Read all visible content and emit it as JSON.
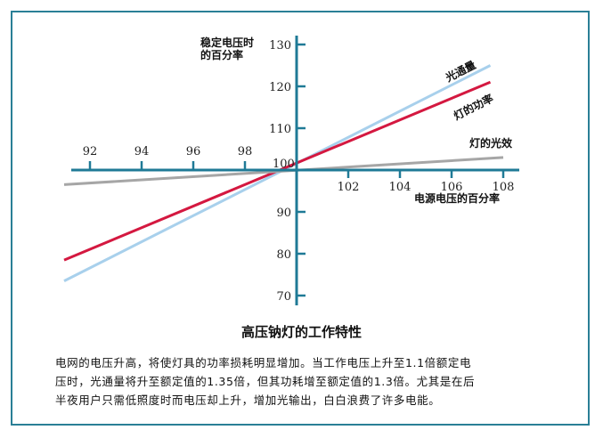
{
  "chart_data": {
    "type": "line",
    "title": "高压钠灯的工作特性",
    "xlabel": "电源电压的百分率",
    "ylabel_lines": [
      "稳定电压时",
      "的百分率"
    ],
    "x_ticks_left": [
      92,
      94,
      96,
      98
    ],
    "x_ticks_right": [
      102,
      104,
      106,
      108
    ],
    "y_ticks": [
      70,
      80,
      90,
      100,
      110,
      120,
      130
    ],
    "xlim": [
      91,
      109
    ],
    "ylim": [
      70,
      130
    ],
    "origin_label": "100",
    "series": [
      {
        "name": "光通量",
        "color": "#a8d0ec",
        "x": [
          91,
          107.5
        ],
        "y": [
          73.5,
          125
        ]
      },
      {
        "name": "灯的功率",
        "color": "#d41840",
        "x": [
          91,
          107.5
        ],
        "y": [
          78.5,
          121
        ]
      },
      {
        "name": "灯的光效",
        "color": "#a6a6a6",
        "x": [
          91,
          108
        ],
        "y": [
          96.5,
          103
        ]
      }
    ]
  },
  "caption": {
    "title": "高压钠灯的工作特性",
    "lines": [
      "电网的电压升高，将使灯具的功率损耗明显增加。当工作电压上升至1.1倍额定电",
      "压时，光通量将升至额定值的1.35倍，但其功耗增至额定值的1.3倍。尤其是在后",
      "半夜用户只需低照度时而电压却上升，增加光输出，白白浪费了许多电能。"
    ]
  },
  "colors": {
    "frame": "#2a7f96",
    "axis": "#1f7a96"
  }
}
